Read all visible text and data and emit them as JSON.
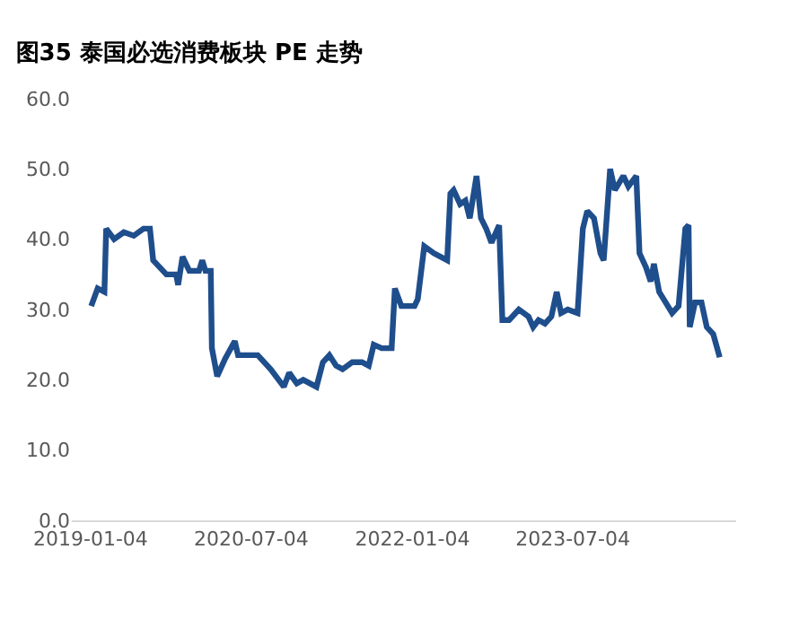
{
  "chart_data": {
    "type": "line",
    "title": "图35 泰国必选消费板块 PE 走势",
    "x": [
      "2019-01-06",
      "2019-01-28",
      "2019-02-20",
      "2019-02-26",
      "2019-03-25",
      "2019-04-27",
      "2019-05-31",
      "2019-07-03",
      "2019-07-25",
      "2019-08-05",
      "2019-09-19",
      "2019-10-22",
      "2019-10-29",
      "2019-11-13",
      "2019-12-06",
      "2020-01-08",
      "2020-01-19",
      "2020-01-30",
      "2020-02-17",
      "2020-02-21",
      "2020-03-10",
      "2020-04-06",
      "2020-05-09",
      "2020-05-20",
      "2020-07-26",
      "2020-09-08",
      "2020-10-23",
      "2020-11-10",
      "2020-12-06",
      "2020-12-28",
      "2021-02-11",
      "2021-03-05",
      "2021-03-27",
      "2021-04-19",
      "2021-05-11",
      "2021-06-13",
      "2021-07-16",
      "2021-08-08",
      "2021-08-25",
      "2021-09-21",
      "2021-10-25",
      "2021-11-05",
      "2021-11-27",
      "2022-01-11",
      "2022-01-22",
      "2022-02-13",
      "2022-03-18",
      "2022-05-02",
      "2022-05-13",
      "2022-05-24",
      "2022-06-15",
      "2022-07-03",
      "2022-07-18",
      "2022-08-10",
      "2022-08-25",
      "2022-09-12",
      "2022-09-30",
      "2022-10-26",
      "2022-11-06",
      "2022-11-29",
      "2023-01-01",
      "2023-02-03",
      "2023-02-19",
      "2023-03-09",
      "2023-03-31",
      "2023-04-22",
      "2023-05-10",
      "2023-05-25",
      "2023-06-17",
      "2023-07-20",
      "2023-08-07",
      "2023-08-22",
      "2023-09-14",
      "2023-10-06",
      "2023-10-17",
      "2023-11-08",
      "2023-11-24",
      "2023-12-23",
      "2024-01-09",
      "2024-02-05",
      "2024-02-16",
      "2024-03-09",
      "2024-03-25",
      "2024-04-05",
      "2024-04-23",
      "2024-05-15",
      "2024-06-06",
      "2024-06-28",
      "2024-07-21",
      "2024-08-01",
      "2024-08-05",
      "2024-08-23",
      "2024-09-14",
      "2024-10-02",
      "2024-10-24",
      "2024-11-15"
    ],
    "series": [
      {
        "color": "#1f4e8c",
        "values": [
          30.5,
          33,
          32.5,
          41.5,
          40,
          41,
          40.5,
          41.5,
          41.5,
          37,
          35,
          35,
          33.5,
          37.5,
          35.5,
          35.5,
          37,
          35.5,
          35.5,
          24.5,
          20.5,
          23,
          25.5,
          23.5,
          23.5,
          21.5,
          19,
          21,
          19.5,
          20,
          19,
          22.5,
          23.5,
          22,
          21.5,
          22.5,
          22.5,
          22,
          25,
          24.5,
          24.5,
          33,
          30.5,
          30.5,
          31.5,
          39,
          38,
          37,
          46.5,
          47,
          45,
          45.5,
          43,
          49,
          43,
          41.5,
          39.5,
          42,
          28.5,
          28.5,
          30,
          29,
          27.5,
          28.5,
          28,
          29,
          32.5,
          29.5,
          30,
          29.5,
          41.5,
          44,
          43,
          38,
          37,
          50,
          47,
          49,
          47.5,
          49,
          38,
          36,
          34,
          36.5,
          32.5,
          31,
          29.5,
          30.5,
          41.5,
          42,
          27.5,
          31,
          31,
          27.5,
          26.5,
          23.2
        ]
      }
    ],
    "xlim": [
      "2018-11-01",
      "2025-01-10"
    ],
    "xticks": [
      "2019-01-04",
      "2020-07-04",
      "2022-01-04",
      "2023-07-04"
    ],
    "ylim": [
      0,
      60
    ],
    "yticks": [
      {
        "value": 0,
        "label": "0.0"
      },
      {
        "value": 10,
        "label": "10.0"
      },
      {
        "value": 20,
        "label": "20.0"
      },
      {
        "value": 30,
        "label": "30.0"
      },
      {
        "value": 40,
        "label": "40.0"
      },
      {
        "value": 50,
        "label": "50.0"
      },
      {
        "value": 60,
        "label": "60.0"
      }
    ],
    "marker": "none",
    "line_style": "solid"
  }
}
